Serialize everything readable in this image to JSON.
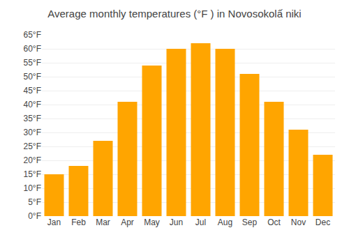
{
  "chart_data": {
    "type": "bar",
    "title": "Average monthly temperatures (°F ) in Novosokolấ niki",
    "categories": [
      "Jan",
      "Feb",
      "Mar",
      "Apr",
      "May",
      "Jun",
      "Jul",
      "Aug",
      "Sep",
      "Oct",
      "Nov",
      "Dec"
    ],
    "values": [
      15,
      18,
      27,
      41,
      54,
      60,
      62,
      60,
      51,
      41,
      31,
      22
    ],
    "color": "#FFA500",
    "ylim": [
      0,
      65
    ],
    "yticks": [
      {
        "value": 0,
        "label": "0°F"
      },
      {
        "value": 5,
        "label": "5°F"
      },
      {
        "value": 10,
        "label": "10°F"
      },
      {
        "value": 15,
        "label": "15°F"
      },
      {
        "value": 20,
        "label": "20°F"
      },
      {
        "value": 25,
        "label": "25°F"
      },
      {
        "value": 30,
        "label": "30°F"
      },
      {
        "value": 35,
        "label": "35°F"
      },
      {
        "value": 40,
        "label": "40°F"
      },
      {
        "value": 45,
        "label": "45°F"
      },
      {
        "value": 50,
        "label": "50°F"
      },
      {
        "value": 55,
        "label": "55°F"
      },
      {
        "value": 60,
        "label": "60°F"
      },
      {
        "value": 65,
        "label": "65°F"
      }
    ],
    "grid": true
  }
}
